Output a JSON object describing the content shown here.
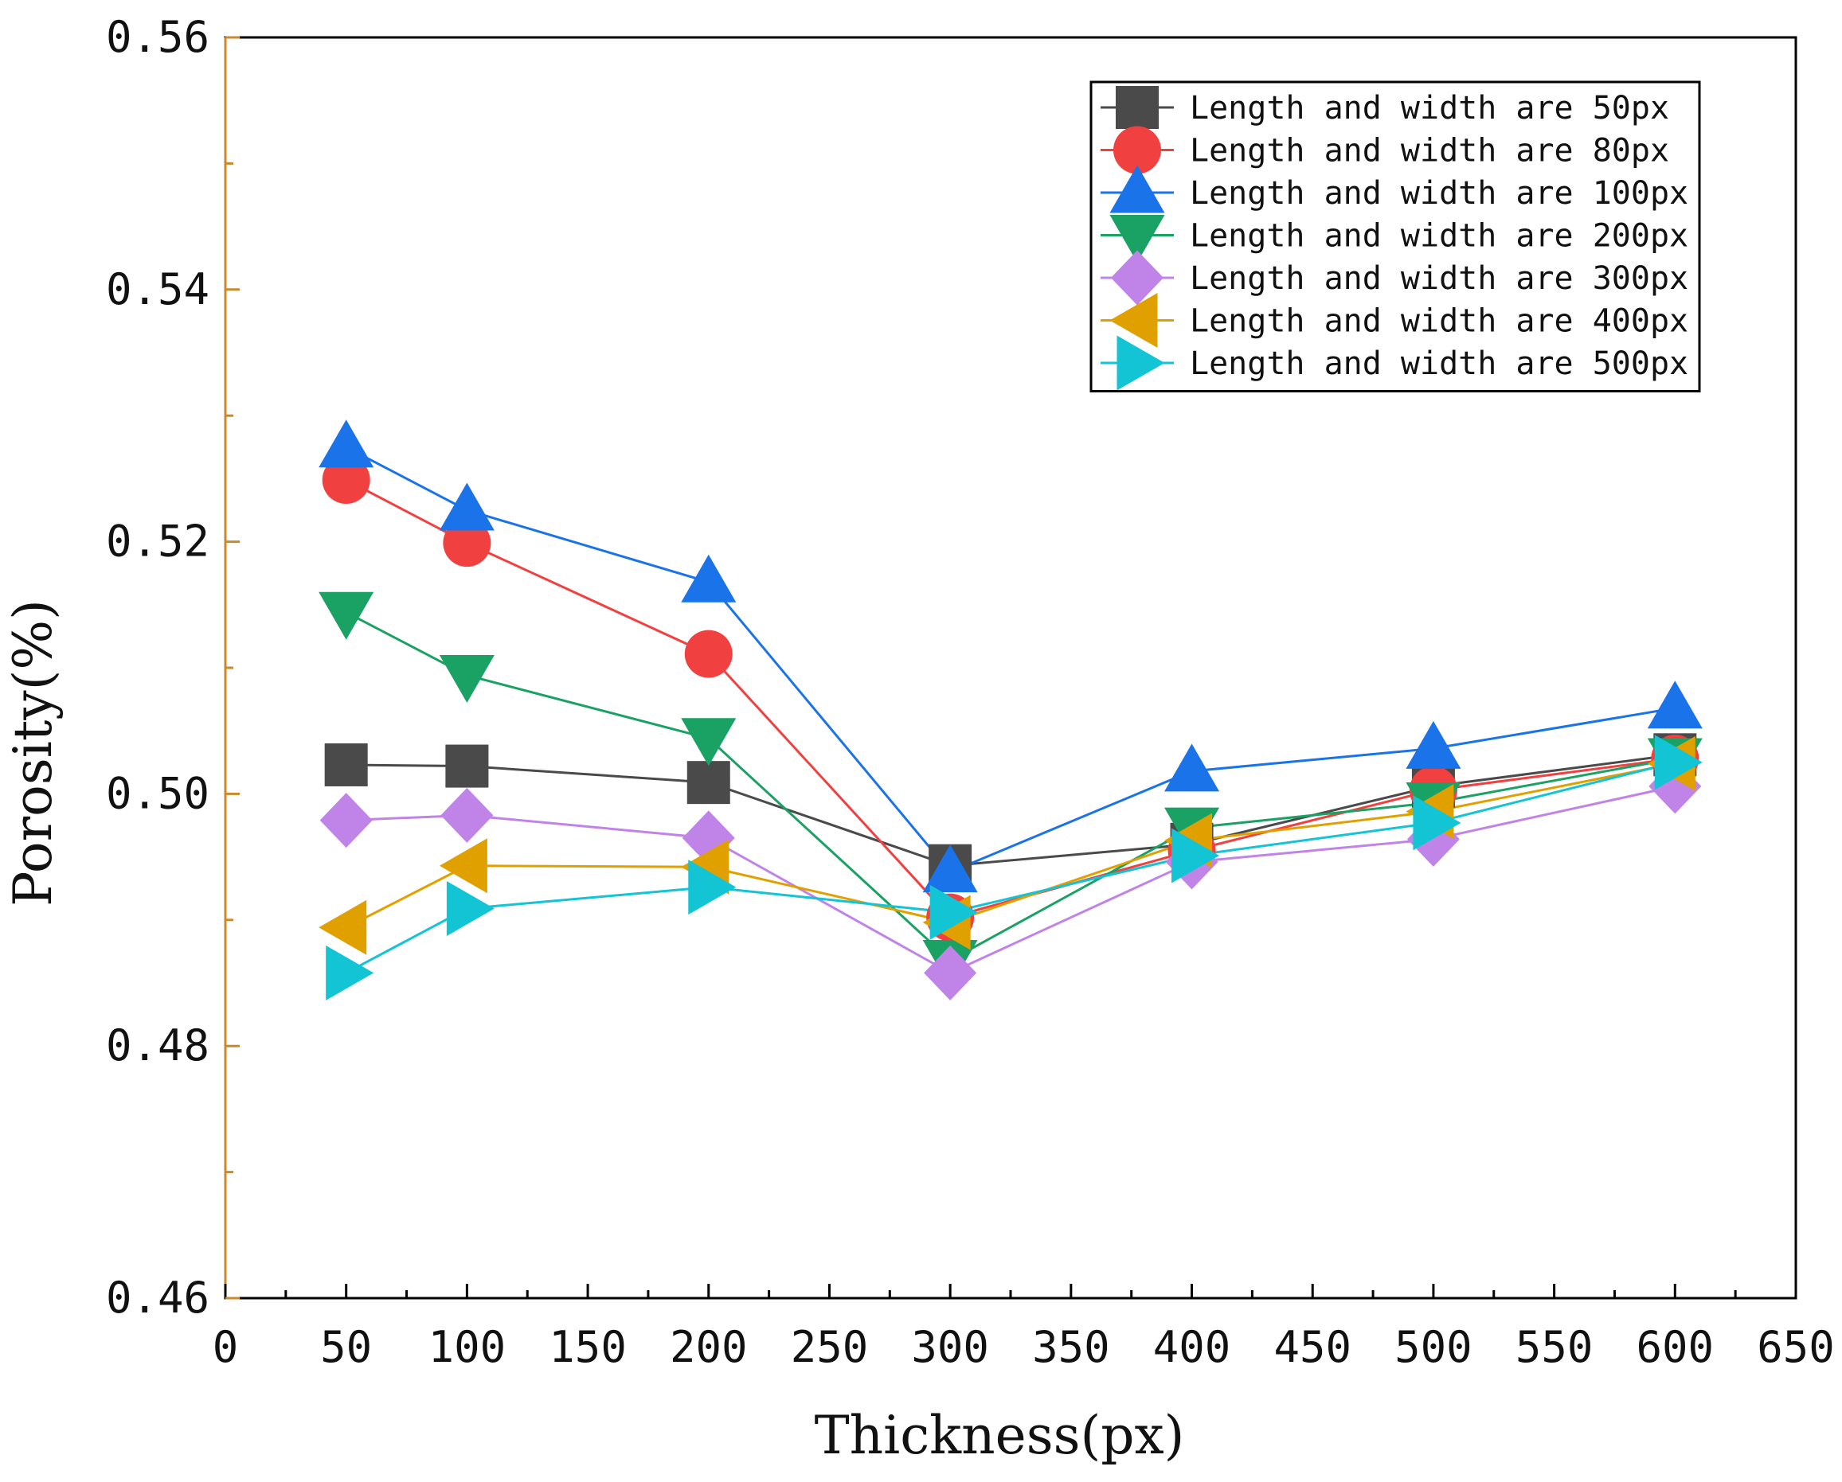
{
  "chart_data": {
    "type": "line",
    "title": "",
    "xlabel": "Thickness(px)",
    "ylabel": "Porosity(%)",
    "xlim": [
      0,
      650
    ],
    "ylim": [
      0.46,
      0.56
    ],
    "x_ticks": [
      "0",
      "50",
      "100",
      "150",
      "200",
      "250",
      "300",
      "350",
      "400",
      "450",
      "500",
      "550",
      "600",
      "650"
    ],
    "y_ticks": [
      "0.46",
      "0.48",
      "0.50",
      "0.52",
      "0.54",
      "0.56"
    ],
    "grid": false,
    "legend_position": "top-right",
    "x": [
      50,
      100,
      200,
      300,
      400,
      500,
      600
    ],
    "series": [
      {
        "name": "Length and width are 50px",
        "color": "#4a4a4a",
        "marker": "square",
        "values": [
          0.5023,
          0.5022,
          0.5009,
          0.4943,
          0.496,
          0.5006,
          0.5031
        ]
      },
      {
        "name": "Length and width are 80px",
        "color": "#f04040",
        "marker": "circle",
        "values": [
          0.5249,
          0.5199,
          0.5111,
          0.4902,
          0.4955,
          0.5003,
          0.5028
        ]
      },
      {
        "name": "Length and width are 100px",
        "color": "#1a73e8",
        "marker": "triangle-up",
        "values": [
          0.5275,
          0.5225,
          0.5168,
          0.4938,
          0.5018,
          0.5036,
          0.5068
        ]
      },
      {
        "name": "Length and width are 200px",
        "color": "#1aa164",
        "marker": "triangle-down",
        "values": [
          0.5144,
          0.5094,
          0.5044,
          0.4868,
          0.4973,
          0.4993,
          0.5028
        ]
      },
      {
        "name": "Length and width are 300px",
        "color": "#c084e8",
        "marker": "diamond",
        "values": [
          0.4979,
          0.4983,
          0.4965,
          0.4858,
          0.4946,
          0.4964,
          0.5006
        ]
      },
      {
        "name": "Length and width are 400px",
        "color": "#e0a000",
        "marker": "triangle-left",
        "values": [
          0.4894,
          0.4943,
          0.4942,
          0.4898,
          0.4963,
          0.4986,
          0.5024
        ]
      },
      {
        "name": "Length and width are 500px",
        "color": "#12c4d4",
        "marker": "triangle-right",
        "values": [
          0.4858,
          0.4909,
          0.4926,
          0.4906,
          0.4951,
          0.4977,
          0.5025
        ]
      }
    ]
  }
}
